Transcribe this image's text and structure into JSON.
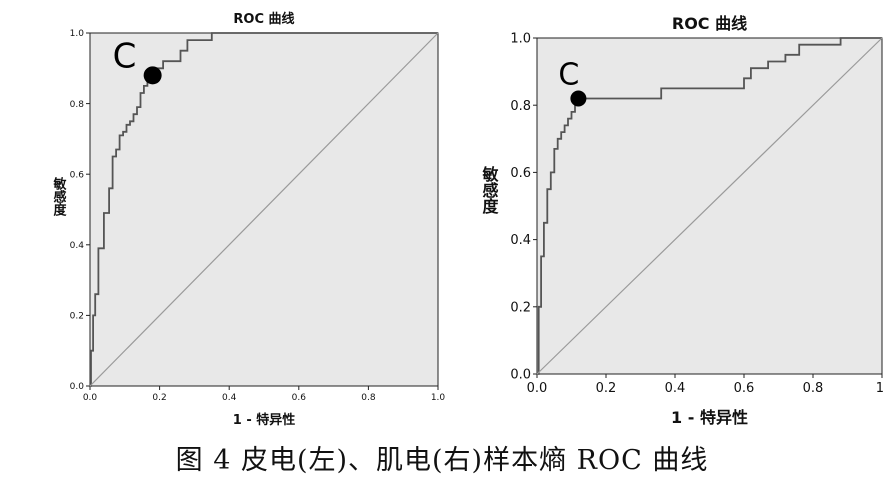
{
  "caption": "图 4 皮电(左)、肌电(右)样本熵 ROC 曲线",
  "colors": {
    "plot_bg": "#e8e8e8",
    "curve": "#555555",
    "diagonal": "#9a9a9a",
    "marker": "#000000"
  },
  "chart_data": [
    {
      "type": "line",
      "title": "ROC 曲线",
      "xlabel": "1 - 特异性",
      "ylabel": "敏感度",
      "xlim": [
        0,
        1
      ],
      "ylim": [
        0,
        1
      ],
      "xticks": [
        "0.0",
        "0.2",
        "0.4",
        "0.6",
        "0.8",
        "1.0"
      ],
      "yticks": [
        "0.0",
        "0.2",
        "0.4",
        "0.6",
        "0.8",
        "1.0"
      ],
      "grid": false,
      "series": [
        {
          "x": [
            0,
            0.003,
            0.003,
            0.009,
            0.009,
            0.015,
            0.015,
            0.024,
            0.024,
            0.04,
            0.04,
            0.055,
            0.055,
            0.065,
            0.065,
            0.075,
            0.075,
            0.085,
            0.085,
            0.095,
            0.095,
            0.105,
            0.105,
            0.115,
            0.115,
            0.125,
            0.125,
            0.135,
            0.135,
            0.145,
            0.145,
            0.155,
            0.155,
            0.165,
            0.165,
            0.175,
            0.175,
            0.19,
            0.19,
            0.21,
            0.21,
            0.26,
            0.26,
            0.28,
            0.28,
            0.35,
            0.35,
            1.0
          ],
          "y": [
            0,
            0,
            0.1,
            0.1,
            0.2,
            0.2,
            0.26,
            0.26,
            0.39,
            0.39,
            0.49,
            0.49,
            0.56,
            0.56,
            0.65,
            0.65,
            0.67,
            0.67,
            0.71,
            0.71,
            0.72,
            0.72,
            0.74,
            0.74,
            0.75,
            0.75,
            0.77,
            0.77,
            0.79,
            0.79,
            0.83,
            0.83,
            0.85,
            0.85,
            0.87,
            0.87,
            0.88,
            0.88,
            0.9,
            0.9,
            0.92,
            0.92,
            0.95,
            0.95,
            0.98,
            0.98,
            1.0,
            1.0
          ]
        },
        {
          "x": [
            0,
            1
          ],
          "y": [
            0,
            1
          ]
        }
      ],
      "annotations": [
        {
          "text": "C",
          "x": 0.18,
          "y": 0.88
        }
      ]
    },
    {
      "type": "line",
      "title": "ROC 曲线",
      "xlabel": "1 - 特异性",
      "ylabel": "敏感度",
      "xlim": [
        0,
        1
      ],
      "ylim": [
        0,
        1
      ],
      "xticks": [
        "0.0",
        "0.2",
        "0.4",
        "0.6",
        "0.8",
        "1."
      ],
      "yticks": [
        "0.0",
        "0.2",
        "0.4",
        "0.6",
        "0.8",
        "1.0"
      ],
      "grid": false,
      "series": [
        {
          "x": [
            0,
            0.005,
            0.005,
            0.012,
            0.012,
            0.02,
            0.02,
            0.03,
            0.03,
            0.04,
            0.04,
            0.05,
            0.05,
            0.06,
            0.06,
            0.07,
            0.07,
            0.08,
            0.08,
            0.09,
            0.09,
            0.1,
            0.1,
            0.11,
            0.11,
            0.12,
            0.12,
            0.36,
            0.36,
            0.6,
            0.6,
            0.62,
            0.62,
            0.67,
            0.67,
            0.72,
            0.72,
            0.76,
            0.76,
            0.88,
            0.88,
            1.0
          ],
          "y": [
            0,
            0,
            0.2,
            0.2,
            0.35,
            0.35,
            0.45,
            0.45,
            0.55,
            0.55,
            0.6,
            0.6,
            0.67,
            0.67,
            0.7,
            0.7,
            0.72,
            0.72,
            0.74,
            0.74,
            0.76,
            0.76,
            0.78,
            0.78,
            0.8,
            0.8,
            0.82,
            0.82,
            0.85,
            0.85,
            0.88,
            0.88,
            0.91,
            0.91,
            0.93,
            0.93,
            0.95,
            0.95,
            0.98,
            0.98,
            1.0,
            1.0
          ]
        },
        {
          "x": [
            0,
            1
          ],
          "y": [
            0,
            1
          ]
        }
      ],
      "annotations": [
        {
          "text": "C",
          "x": 0.12,
          "y": 0.82
        }
      ]
    }
  ]
}
